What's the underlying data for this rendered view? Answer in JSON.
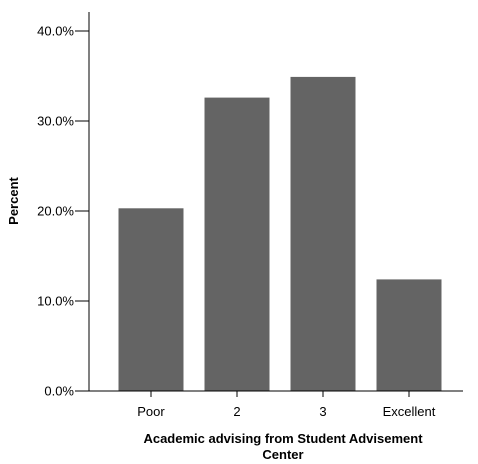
{
  "chart_data": {
    "type": "bar",
    "categories": [
      "Poor",
      "2",
      "3",
      "Excellent"
    ],
    "values": [
      20.3,
      32.6,
      34.9,
      12.4
    ],
    "ylim": [
      0,
      40
    ],
    "yticks": [
      0,
      10,
      20,
      30,
      40
    ],
    "ytick_labels": [
      "0.0%",
      "10.0%",
      "20.0%",
      "30.0%",
      "40.0%"
    ],
    "ylabel": "Percent",
    "xlabel_lines": [
      "Academic advising from Student Advisement",
      "Center"
    ],
    "bar_color": "#646464",
    "axis_color": "#000000",
    "grid": false,
    "legend": "none"
  }
}
